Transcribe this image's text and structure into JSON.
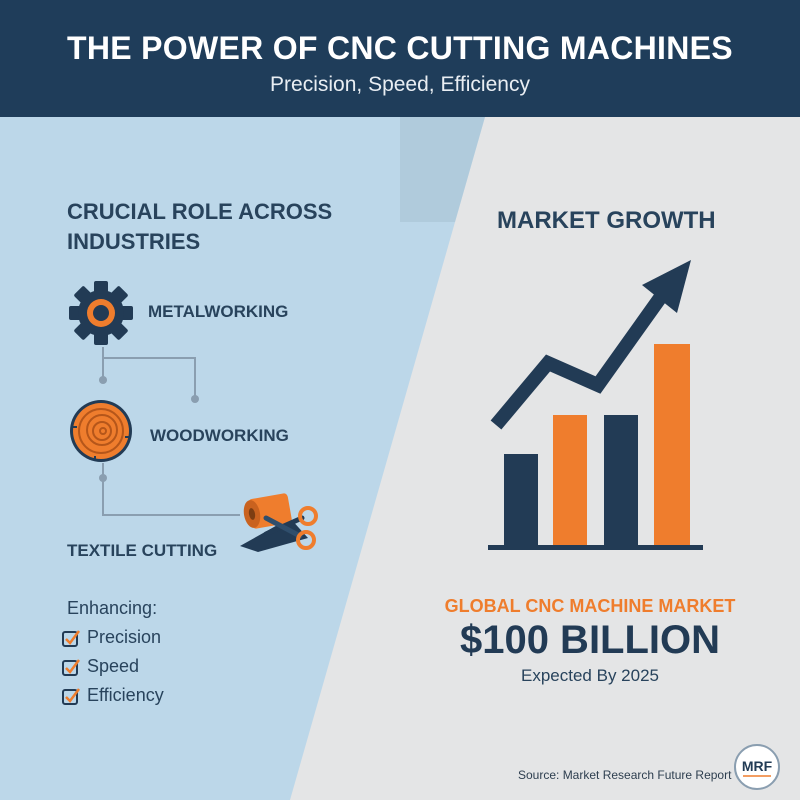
{
  "header": {
    "title": "THE POWER OF CNC CUTTING MACHINES",
    "subtitle": "Precision, Speed, Efficiency"
  },
  "left": {
    "title": "CRUCIAL ROLE ACROSS INDUSTRIES",
    "industries": [
      {
        "label": "METALWORKING",
        "icon": "gear-icon"
      },
      {
        "label": "WOODWORKING",
        "icon": "wood-log-icon"
      },
      {
        "label": "TEXTILE CUTTING",
        "icon": "fabric-scissors-icon"
      }
    ],
    "enhancing_title": "Enhancing:",
    "enhancing_items": [
      "Precision",
      "Speed",
      "Efficiency"
    ]
  },
  "right": {
    "title": "MARKET GROWTH",
    "market_label": "GLOBAL CNC MACHINE MARKET",
    "market_value": "$100 BILLION",
    "market_note": "Expected By 2025"
  },
  "footer": {
    "source": "Source: Market Research Future Report",
    "logo_text": "MRF"
  },
  "colors": {
    "navy": "#1f3d5a",
    "orange": "#ef7d2d",
    "left_bg": "#bcd7e9",
    "right_bg": "#e4e5e6"
  }
}
